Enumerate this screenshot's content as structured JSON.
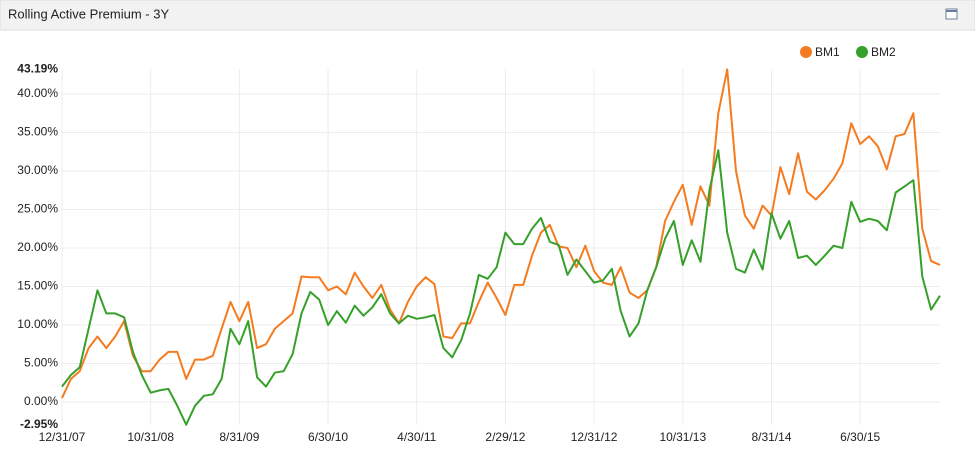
{
  "chart_data": {
    "type": "line",
    "title": "Rolling Active Premium - 3Y",
    "categories": [
      "12/31/07",
      null,
      null,
      null,
      null,
      null,
      null,
      null,
      null,
      null,
      "10/31/08",
      null,
      null,
      null,
      null,
      null,
      null,
      null,
      null,
      null,
      "8/31/09",
      null,
      null,
      null,
      null,
      null,
      null,
      null,
      null,
      null,
      "6/30/10",
      null,
      null,
      null,
      null,
      null,
      null,
      null,
      null,
      null,
      "4/30/11",
      null,
      null,
      null,
      null,
      null,
      null,
      null,
      null,
      null,
      "2/29/12",
      null,
      null,
      null,
      null,
      null,
      null,
      null,
      null,
      null,
      "12/31/12",
      null,
      null,
      null,
      null,
      null,
      null,
      null,
      null,
      null,
      "10/31/13",
      null,
      null,
      null,
      null,
      null,
      null,
      null,
      null,
      null,
      "8/31/14",
      null,
      null,
      null,
      null,
      null,
      null,
      null,
      null,
      null,
      "6/30/15",
      null,
      null,
      null,
      null,
      null,
      null,
      null,
      null,
      null
    ],
    "series": [
      {
        "name": "BM1",
        "color": "#f47b20",
        "values": [
          0.5,
          3,
          4,
          7,
          8.5,
          7,
          8.5,
          10.5,
          6,
          4,
          4,
          5.5,
          6.5,
          6.5,
          3,
          5.5,
          5.5,
          6,
          9.5,
          13,
          10.5,
          13,
          7,
          7.5,
          9.5,
          10.5,
          11.5,
          16.3,
          16.2,
          16.2,
          14.5,
          15,
          14,
          16.8,
          15,
          13.5,
          15.2,
          12,
          10.2,
          13,
          15,
          16.2,
          15.3,
          8.5,
          8.3,
          10.2,
          10.2,
          13,
          15.5,
          13.5,
          11.3,
          15.2,
          15.2,
          19,
          22,
          23,
          20.2,
          20,
          17.5,
          20.3,
          17,
          15.5,
          15.2,
          17.5,
          14.2,
          13.5,
          14.5,
          17.5,
          23.5,
          26,
          28.2,
          23,
          28,
          25.5,
          37.5,
          43.19,
          30,
          24.2,
          22.5,
          25.5,
          24.2,
          30.5,
          27,
          32.3,
          27.3,
          26.3,
          27.5,
          29,
          31,
          36.2,
          33.5,
          34.5,
          33.2,
          30.2,
          34.5,
          34.8,
          37.5,
          22.5,
          18.3,
          17.8
        ]
      },
      {
        "name": "BM2",
        "color": "#36a02a",
        "values": [
          2,
          3.5,
          4.5,
          9.5,
          14.5,
          11.5,
          11.5,
          11,
          6.5,
          3.5,
          1.2,
          1.5,
          1.7,
          -0.5,
          -2.95,
          -0.5,
          0.8,
          1,
          3,
          9.5,
          7.5,
          10.5,
          3.2,
          2,
          3.8,
          4,
          6.2,
          11.5,
          14.3,
          13.3,
          10,
          11.8,
          10.3,
          12.5,
          11.2,
          12.3,
          14,
          11.5,
          10.2,
          11.2,
          10.8,
          11,
          11.3,
          7,
          5.8,
          8,
          11.5,
          16.5,
          16,
          17.5,
          22,
          20.5,
          20.5,
          22.5,
          23.9,
          20.8,
          20.4,
          16.5,
          18.5,
          17,
          15.5,
          15.8,
          17.3,
          11.8,
          8.5,
          10.2,
          14.5,
          17.5,
          21.2,
          23.5,
          17.8,
          21,
          18.2,
          27.5,
          32.7,
          22,
          17.3,
          16.8,
          19.8,
          17.2,
          24.5,
          21.2,
          23.5,
          18.7,
          19,
          17.8,
          19,
          20.3,
          20,
          26,
          23.4,
          23.8,
          23.5,
          22.3,
          27.2,
          28,
          28.8,
          16.3,
          12,
          13.8
        ]
      }
    ],
    "ylim": [
      -2.95,
      43.19
    ],
    "yticks": [
      {
        "value": -2.95,
        "label": "-2.95%"
      },
      {
        "value": 0,
        "label": "0.00%"
      },
      {
        "value": 5,
        "label": "5.00%"
      },
      {
        "value": 10,
        "label": "10.00%"
      },
      {
        "value": 15,
        "label": "15.00%"
      },
      {
        "value": 20,
        "label": "20.00%"
      },
      {
        "value": 25,
        "label": "25.00%"
      },
      {
        "value": 30,
        "label": "30.00%"
      },
      {
        "value": 35,
        "label": "35.00%"
      },
      {
        "value": 40,
        "label": "40.00%"
      },
      {
        "value": 43.19,
        "label": "43.19%"
      }
    ],
    "grid": true,
    "legend": "top-right"
  }
}
